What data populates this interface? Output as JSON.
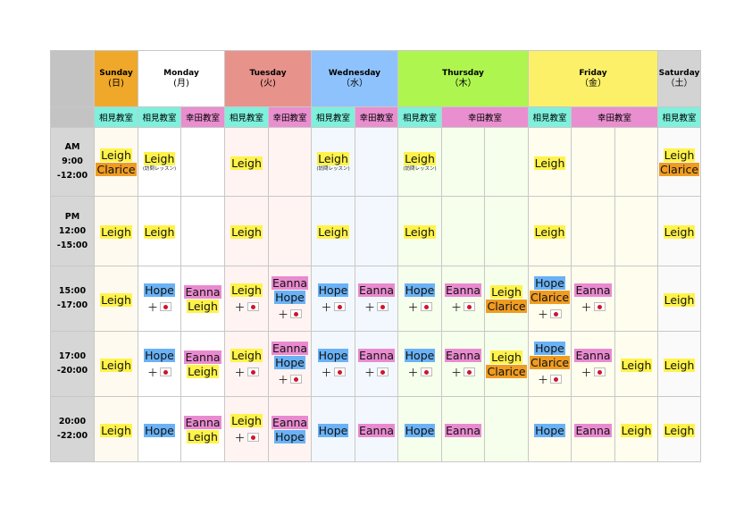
{
  "days": [
    {
      "name": "Sunday",
      "kanji": "(日)",
      "color": "#efa829"
    },
    {
      "name": "Monday",
      "kanji": "(月)",
      "color": "#ffffff"
    },
    {
      "name": "Tuesday",
      "kanji": "(火)",
      "color": "#e8928c"
    },
    {
      "name": "Wednesday",
      "kanji": "（水）",
      "color": "#8ec2fc"
    },
    {
      "name": "Thursday",
      "kanji": "（木）",
      "color": "#aef54f"
    },
    {
      "name": "Friday",
      "kanji": "（金）",
      "color": "#fbf067"
    },
    {
      "name": "Saturday",
      "kanji": "（土）",
      "color": "#d3d3d3"
    }
  ],
  "rooms": {
    "aimi": "相見教室",
    "koda": "幸田教室"
  },
  "times": [
    [
      "AM",
      "9:00",
      "-12:00"
    ],
    [
      "PM",
      "12:00",
      "-15:00"
    ],
    [
      "15:00",
      "-17:00"
    ],
    [
      "17:00",
      "-20:00"
    ],
    [
      "20:00",
      "-22:00"
    ]
  ],
  "names": {
    "leigh": "Leigh",
    "clarice": "Clarice",
    "hope": "Hope",
    "eanna": "Eanna"
  },
  "note": "(訪問レッスン)",
  "plus": "＋"
}
